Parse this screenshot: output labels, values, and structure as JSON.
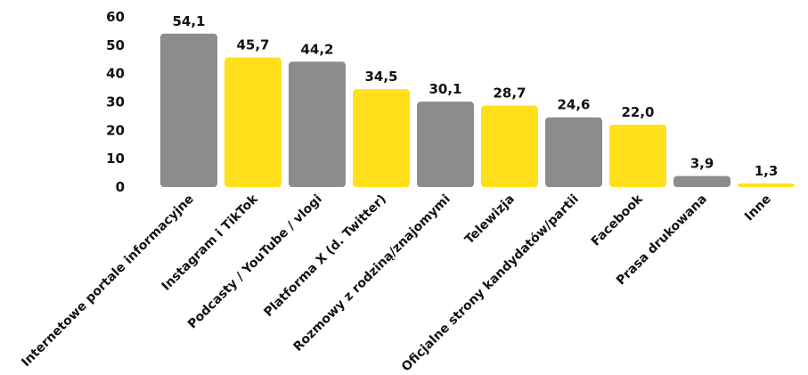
{
  "chart_data": {
    "type": "bar",
    "categories": [
      "Internetowe portale informacyjne",
      "Instagram i TikTok",
      "Podcasty / YouTube / vlogi",
      "Platforma X (d. Twitter)",
      "Rozmowy z rodziną/znajomymi",
      "Telewizja",
      "Oficjalne strony kandydatów/partii",
      "Facebook",
      "Prasa drukowana",
      "Inne"
    ],
    "values": [
      54.1,
      45.7,
      44.2,
      34.5,
      30.1,
      28.7,
      24.6,
      22.0,
      3.9,
      1.3
    ],
    "value_labels": [
      "54,1",
      "45,7",
      "44,2",
      "34,5",
      "30,1",
      "28,7",
      "24,6",
      "22,0",
      "3,9",
      "1,3"
    ],
    "bar_colors": [
      "#8c8c8c",
      "#ffe01b",
      "#8c8c8c",
      "#ffe01b",
      "#8c8c8c",
      "#ffe01b",
      "#8c8c8c",
      "#ffe01b",
      "#8c8c8c",
      "#ffe01b"
    ],
    "ylim": [
      0,
      60
    ],
    "yticks": [
      "0",
      "10",
      "20",
      "30",
      "40",
      "50",
      "60"
    ],
    "grid": false,
    "title": "",
    "xlabel": "",
    "ylabel": ""
  }
}
